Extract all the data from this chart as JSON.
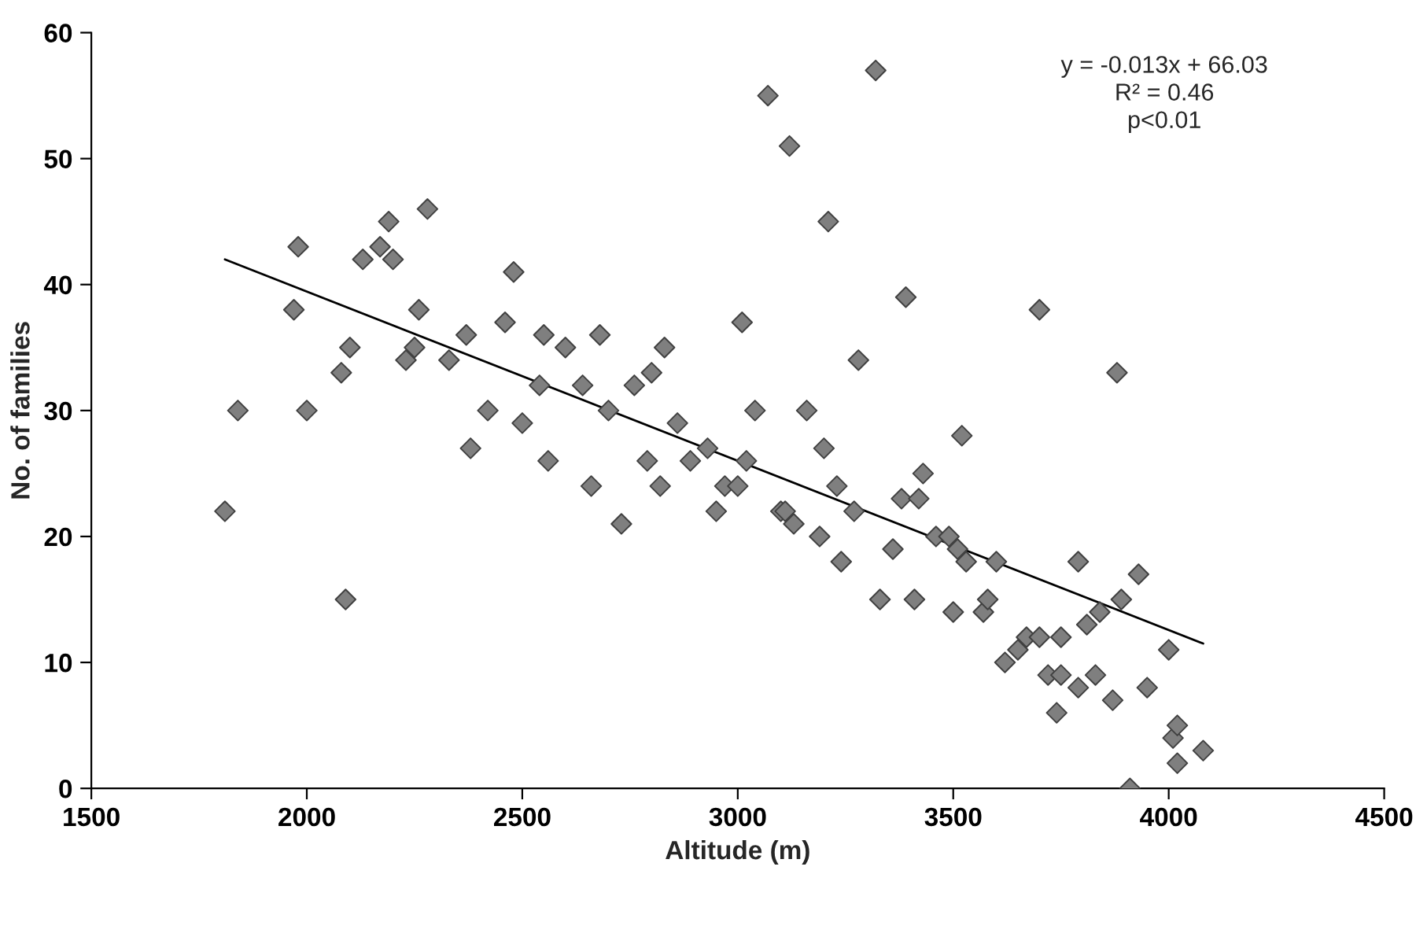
{
  "chart_data": {
    "type": "scatter",
    "xlabel": "Altitude (m)",
    "ylabel": "No. of families",
    "annotations": [
      "y = -0.013x + 66.03\nR² = 0.46\np<0.01"
    ],
    "xlim": [
      1500,
      4500
    ],
    "xticks": [
      1500,
      2000,
      2500,
      3000,
      3500,
      4000,
      4500
    ],
    "ylim": [
      0,
      60
    ],
    "yticks": [
      0,
      10,
      20,
      30,
      40,
      50,
      60
    ],
    "grid": false,
    "legend": false,
    "series": [
      {
        "color": "#7f7f7f",
        "marker": "diamond",
        "x": [
          1810,
          1840,
          1970,
          1980,
          2000,
          2080,
          2090,
          2100,
          2130,
          2170,
          2190,
          2200,
          2230,
          2250,
          2260,
          2280,
          2330,
          2370,
          2380,
          2420,
          2460,
          2480,
          2500,
          2540,
          2550,
          2560,
          2600,
          2640,
          2660,
          2680,
          2700,
          2730,
          2760,
          2790,
          2800,
          2820,
          2830,
          2860,
          2890,
          2930,
          2950,
          2970,
          3000,
          3010,
          3020,
          3040,
          3070,
          3100,
          3110,
          3120,
          3130,
          3160,
          3190,
          3200,
          3210,
          3230,
          3240,
          3270,
          3280,
          3320,
          3330,
          3360,
          3380,
          3390,
          3410,
          3420,
          3430,
          3460,
          3490,
          3500,
          3510,
          3520,
          3530,
          3570,
          3580,
          3600,
          3620,
          3650,
          3670,
          3700,
          3700,
          3720,
          3740,
          3750,
          3750,
          3790,
          3790,
          3810,
          3830,
          3840,
          3870,
          3880,
          3890,
          3910,
          3930,
          3950,
          4000,
          4010,
          4020,
          4020,
          4080
        ],
        "values": [
          22,
          30,
          38,
          43,
          30,
          33,
          15,
          35,
          42,
          43,
          45,
          42,
          34,
          35,
          38,
          46,
          34,
          36,
          27,
          30,
          37,
          41,
          29,
          32,
          36,
          26,
          35,
          32,
          24,
          36,
          30,
          21,
          32,
          26,
          33,
          24,
          35,
          29,
          26,
          27,
          22,
          24,
          24,
          37,
          26,
          30,
          55,
          22,
          22,
          51,
          21,
          30,
          20,
          27,
          45,
          24,
          18,
          22,
          34,
          57,
          15,
          19,
          23,
          39,
          15,
          23,
          25,
          20,
          20,
          14,
          19,
          28,
          18,
          14,
          15,
          18,
          10,
          11,
          12,
          12,
          38,
          9,
          6,
          12,
          9,
          8,
          18,
          13,
          9,
          14,
          7,
          33,
          15,
          0,
          17,
          8,
          11,
          4,
          5,
          2,
          3
        ]
      },
      {
        "type": "line",
        "color": "#000000",
        "marker": "none",
        "line_style": "solid",
        "x": [
          1810,
          4080
        ],
        "values": [
          42,
          11.5
        ]
      }
    ]
  }
}
